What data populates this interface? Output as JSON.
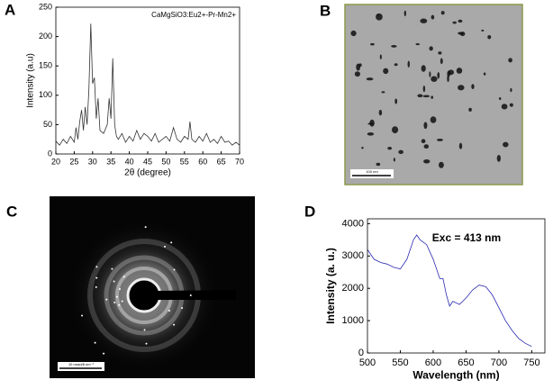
{
  "chart_data": [
    {
      "type": "line",
      "panel_label": "A",
      "x_label": "2θ (degree)",
      "y_label": "Intensity (a.u)",
      "x": [
        20,
        21,
        22,
        23,
        24,
        25,
        25.5,
        26,
        26.5,
        27,
        27.5,
        28,
        28.5,
        29,
        29.5,
        30,
        30.5,
        31,
        31.5,
        32,
        33,
        34,
        34.5,
        35,
        35.5,
        36,
        36.5,
        37,
        38,
        39,
        40,
        41,
        42,
        43,
        44,
        45,
        46,
        47,
        48,
        49,
        50,
        51,
        52,
        53,
        54,
        55,
        56,
        56.5,
        57,
        58,
        59,
        60,
        61,
        62,
        63,
        64,
        65,
        66,
        67,
        68,
        69,
        70
      ],
      "series": [
        {
          "name": "CaMgSiO3:Eu2+-Pr-Mn2+",
          "color": "#333333",
          "values": [
            22,
            15,
            25,
            18,
            30,
            20,
            45,
            25,
            55,
            75,
            40,
            80,
            50,
            110,
            222,
            120,
            130,
            60,
            95,
            40,
            35,
            50,
            95,
            60,
            163,
            50,
            30,
            25,
            35,
            20,
            30,
            22,
            40,
            25,
            35,
            30,
            22,
            35,
            20,
            25,
            30,
            22,
            45,
            25,
            20,
            30,
            25,
            55,
            25,
            20,
            30,
            22,
            35,
            20,
            25,
            18,
            30,
            20,
            22,
            15,
            20,
            15
          ]
        }
      ],
      "xlim": [
        20,
        70
      ],
      "ylim": [
        0,
        250
      ],
      "xticks": [
        20,
        25,
        30,
        35,
        40,
        45,
        50,
        55,
        60,
        65,
        70
      ],
      "yticks": [
        0,
        50,
        100,
        150,
        200,
        250
      ]
    },
    {
      "type": "line",
      "panel_label": "D",
      "x_label": "Wavelength (nm)",
      "y_label": "Intensity (a. u.)",
      "annotation": "Exc = 413 nm",
      "x": [
        500,
        510,
        520,
        530,
        540,
        550,
        560,
        570,
        575,
        580,
        590,
        600,
        610,
        615,
        620,
        625,
        630,
        640,
        650,
        660,
        670,
        680,
        690,
        700,
        710,
        720,
        730,
        740,
        750
      ],
      "series": [
        {
          "color": "#2a2ab0",
          "values": [
            3200,
            2900,
            2800,
            2750,
            2650,
            2600,
            2900,
            3500,
            3650,
            3500,
            3350,
            2900,
            2300,
            2300,
            1800,
            1450,
            1600,
            1500,
            1700,
            1950,
            2100,
            2050,
            1800,
            1400,
            1000,
            700,
            450,
            300,
            200
          ]
        }
      ],
      "xlim": [
        500,
        770
      ],
      "ylim": [
        0,
        4150
      ],
      "xticks": [
        500,
        550,
        600,
        650,
        700,
        750
      ],
      "yticks": [
        0,
        1000,
        2000,
        3000,
        4000
      ]
    }
  ],
  "images": [
    {
      "label": "B",
      "scale_bar": "100 nm"
    },
    {
      "label": "C",
      "scale_bar": "10 mrad/8 nm⁻¹"
    }
  ]
}
